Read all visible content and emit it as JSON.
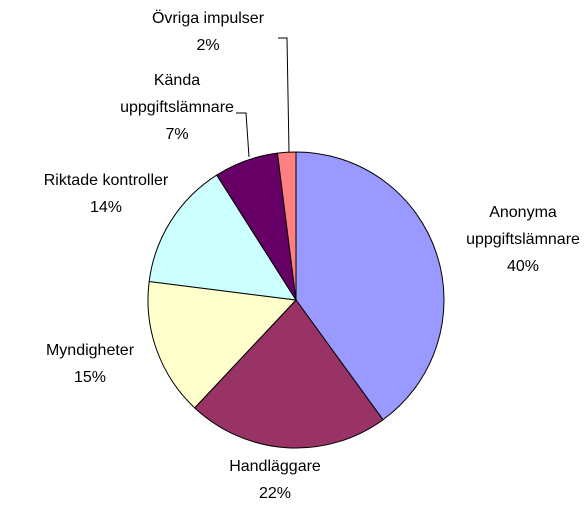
{
  "chart_data": {
    "type": "pie",
    "categories": [
      "Anonyma uppgiftslämnare",
      "Handläggare",
      "Myndigheter",
      "Riktade kontroller",
      "Kända uppgiftslämnare",
      "Övriga impulser"
    ],
    "values": [
      40,
      22,
      15,
      14,
      7,
      2
    ],
    "value_labels": [
      "40%",
      "22%",
      "15%",
      "14%",
      "7%",
      "2%"
    ],
    "colors": [
      "#9999ff",
      "#993366",
      "#ffffcc",
      "#ccffff",
      "#660066",
      "#ff8080"
    ]
  }
}
